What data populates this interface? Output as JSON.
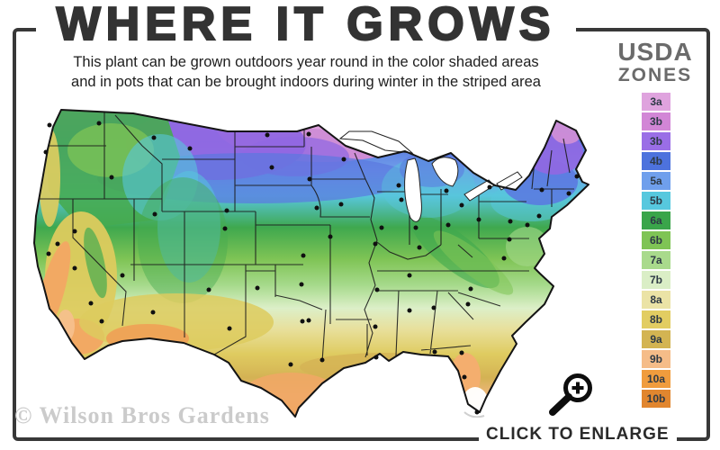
{
  "header": {
    "title": "WHERE IT GROWS",
    "subtitle_line1": "This plant can be grown outdoors year round in the color shaded areas",
    "subtitle_line2": "and in pots that can be brought indoors during winter in the striped area"
  },
  "legend": {
    "title_line1": "USDA",
    "title_line2": "ZONES",
    "zones": [
      {
        "label": "3a",
        "color": "#dfa3de"
      },
      {
        "label": "3b",
        "color": "#d286d6"
      },
      {
        "label": "3b",
        "color": "#9a6ee6"
      },
      {
        "label": "4b",
        "color": "#4d72dd"
      },
      {
        "label": "5a",
        "color": "#6f9fec"
      },
      {
        "label": "5b",
        "color": "#57c8de"
      },
      {
        "label": "6a",
        "color": "#3aa54a"
      },
      {
        "label": "6b",
        "color": "#7fc455"
      },
      {
        "label": "7a",
        "color": "#a9da8c"
      },
      {
        "label": "7b",
        "color": "#daeec6"
      },
      {
        "label": "8a",
        "color": "#ebe3a6"
      },
      {
        "label": "8b",
        "color": "#e2cd62"
      },
      {
        "label": "9a",
        "color": "#d3b452"
      },
      {
        "label": "9b",
        "color": "#f5bc88"
      },
      {
        "label": "10a",
        "color": "#f09c3d"
      },
      {
        "label": "10b",
        "color": "#e1862f"
      }
    ]
  },
  "watermark": {
    "text": "© Wilson Bros Gardens"
  },
  "footer": {
    "enlarge_label": "CLICK TO ENLARGE"
  },
  "icons": {
    "enlarge_icon": "magnifier-plus-icon"
  },
  "colors": {
    "frame": "#383838",
    "title_text": "#333333",
    "subtitle_text": "#1e1e1e",
    "legend_title_text": "#6b6b6b",
    "watermark_text": "#cbcbcb",
    "cta_text": "#2a2a2a",
    "map_outline": "#141414"
  }
}
